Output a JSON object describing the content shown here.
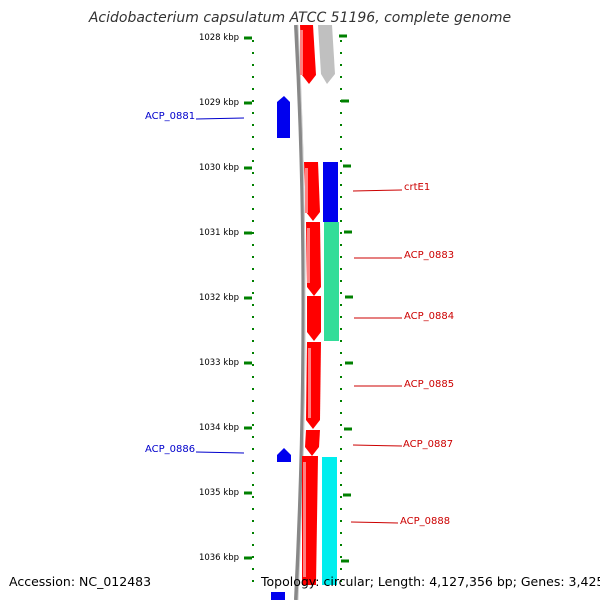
{
  "title": "Acidobacterium capsulatum ATCC 51196, complete genome",
  "footer": {
    "accession": "Accession: NC_012483",
    "topology": "Topology: circular; Length: 4,127,356 bp; Genes: 3,425"
  },
  "ruler": [
    "1028 kbp",
    "1029 kbp",
    "1030 kbp",
    "1031 kbp",
    "1032 kbp",
    "1033 kbp",
    "1034 kbp",
    "1035 kbp",
    "1036 kbp"
  ],
  "gene_labels": {
    "acp0881": "ACP_0881",
    "crtE1": "crtE1",
    "acp0883": "ACP_0883",
    "acp0884": "ACP_0884",
    "acp0885": "ACP_0885",
    "acp0887": "ACP_0887",
    "acp0886": "ACP_0886",
    "acp0888": "ACP_0888"
  },
  "colors": {
    "reverse_strand_label": "#0000cc",
    "forward_strand_label": "#cc0000",
    "ruler_tick": "#008000",
    "backbone": "#888888"
  }
}
